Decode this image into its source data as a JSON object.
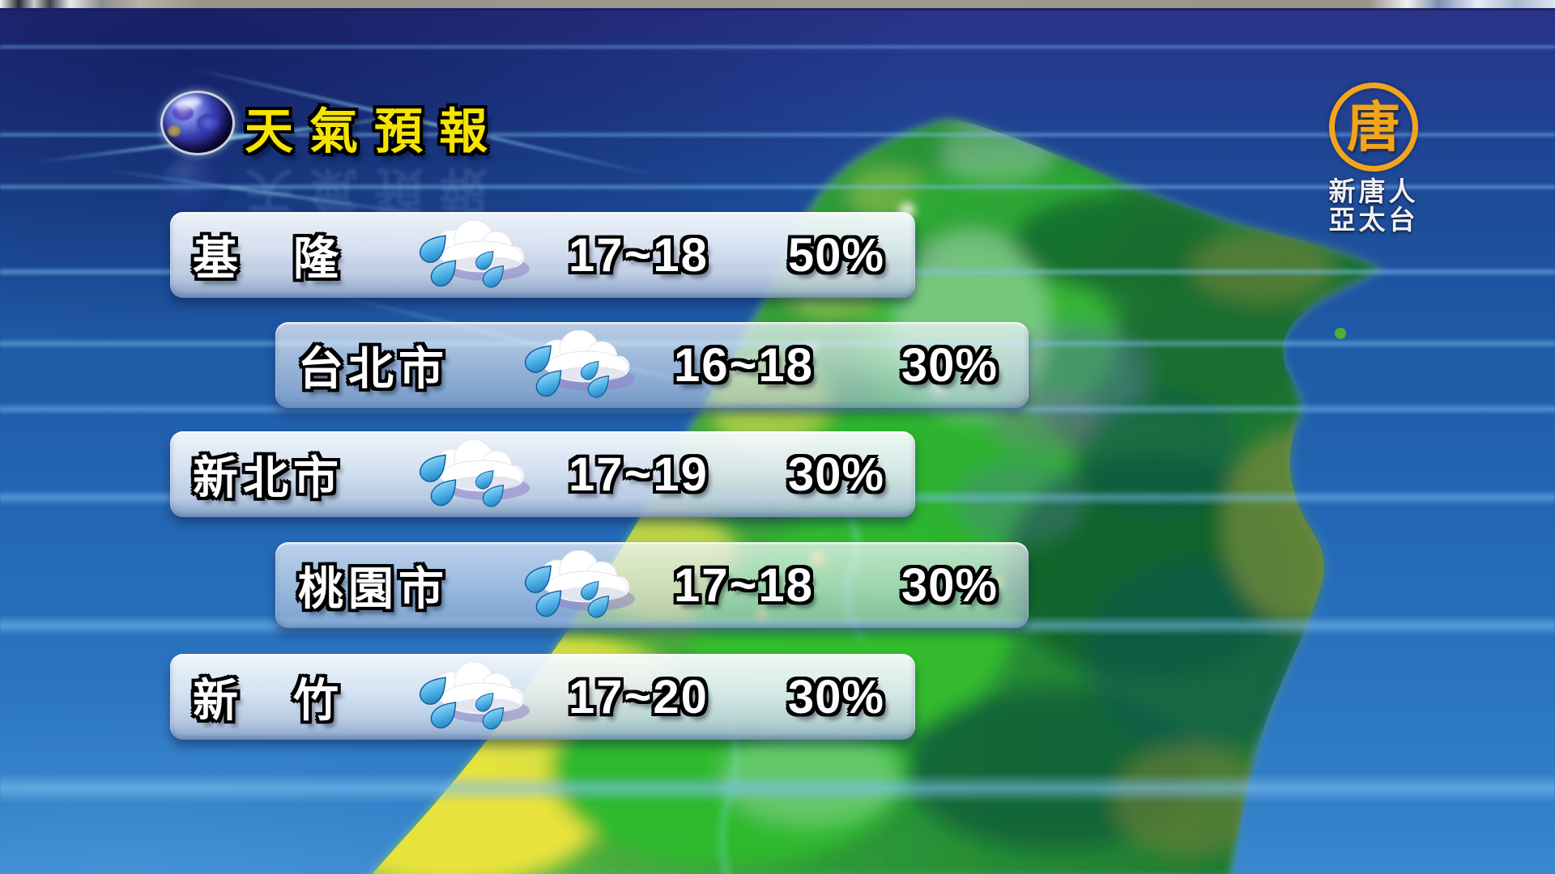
{
  "header": {
    "title": "天氣預報"
  },
  "logo": {
    "symbol": "唐",
    "line1": "新唐人",
    "line2": "亞太台"
  },
  "forecast": {
    "rows": [
      {
        "city": "基　隆",
        "icon": "rain-cloud-icon",
        "temp": "17~18",
        "pop": "50%"
      },
      {
        "city": "台北市",
        "icon": "rain-cloud-icon",
        "temp": "16~18",
        "pop": "30%"
      },
      {
        "city": "新北市",
        "icon": "rain-cloud-icon",
        "temp": "17~19",
        "pop": "30%"
      },
      {
        "city": "桃園市",
        "icon": "rain-cloud-icon",
        "temp": "17~18",
        "pop": "30%"
      },
      {
        "city": "新　竹",
        "icon": "rain-cloud-icon",
        "temp": "17~20",
        "pop": "30%"
      }
    ]
  },
  "colors": {
    "title_yellow": "#f5e400",
    "logo_gold": "#f2a51c",
    "sea_blue": "#1f5aa6",
    "stripe_blue": "#7fc0f0",
    "island_green": "#2d9436",
    "plain_yellow": "#e0e14a",
    "rain_drop_blue": "#2489cc",
    "bar_light": "#e1e9f4",
    "text_white": "#ffffff"
  }
}
